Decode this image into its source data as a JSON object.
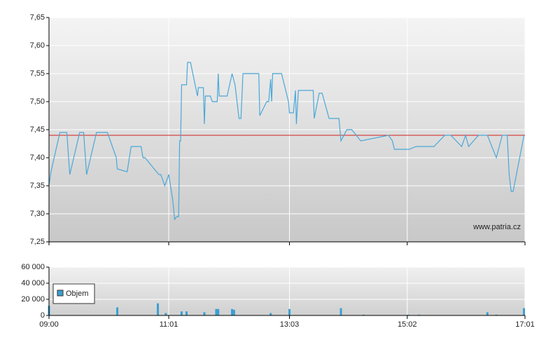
{
  "chart_data": {
    "type": "line",
    "watermark": "www.patria.cz",
    "xlim": [
      540,
      1021
    ],
    "xticks": [
      {
        "value": 540,
        "label": "09:00"
      },
      {
        "value": 661,
        "label": "11:01"
      },
      {
        "value": 783,
        "label": "13:03"
      },
      {
        "value": 902,
        "label": "15:02"
      },
      {
        "value": 1021,
        "label": "17:01"
      }
    ],
    "ylim": [
      7.25,
      7.65
    ],
    "yticks": [
      {
        "value": 7.25,
        "label": "7,25"
      },
      {
        "value": 7.3,
        "label": "7,30"
      },
      {
        "value": 7.35,
        "label": "7,35"
      },
      {
        "value": 7.4,
        "label": "7,40"
      },
      {
        "value": 7.45,
        "label": "7,45"
      },
      {
        "value": 7.5,
        "label": "7,50"
      },
      {
        "value": 7.55,
        "label": "7,55"
      },
      {
        "value": 7.6,
        "label": "7,60"
      },
      {
        "value": 7.65,
        "label": "7,65"
      }
    ],
    "y2lim": [
      0,
      60000
    ],
    "y2ticks": [
      0,
      {
        "value": 20000,
        "label": "20 000"
      },
      {
        "value": 40000,
        "label": "40 000"
      },
      {
        "value": 60000,
        "label": "60 000"
      }
    ],
    "reference_line": {
      "value": 7.44,
      "color": "#d42020"
    },
    "grid": true,
    "legend": "upper left",
    "series": [
      {
        "type": "line",
        "color": "#4aa8d8",
        "x": [
          540,
          542,
          551,
          558,
          561,
          571,
          575,
          578,
          588,
          599,
          608,
          609,
          619,
          623,
          633,
          635,
          637,
          651,
          653,
          657,
          661,
          665,
          667,
          669,
          671,
          672,
          673,
          674,
          679,
          680,
          683,
          690,
          691,
          696,
          697,
          698,
          703,
          705,
          710,
          711,
          712,
          720,
          725,
          728,
          732,
          734,
          736,
          752,
          753,
          760,
          762,
          764,
          765,
          766,
          775,
          782,
          783,
          787,
          789,
          790,
          792,
          807,
          808,
          813,
          816,
          823,
          833,
          835,
          841,
          846,
          855,
          883,
          887,
          889,
          904,
          911,
          929,
          940,
          946,
          957,
          961,
          964,
          974,
          983,
          992,
          998,
          1003,
          1005,
          1007,
          1009,
          1020
        ],
        "values": [
          7.35,
          7.375,
          7.445,
          7.445,
          7.37,
          7.445,
          7.445,
          7.37,
          7.445,
          7.445,
          7.4,
          7.38,
          7.375,
          7.42,
          7.42,
          7.4,
          7.4,
          7.37,
          7.37,
          7.35,
          7.37,
          7.325,
          7.29,
          7.295,
          7.295,
          7.43,
          7.43,
          7.53,
          7.53,
          7.57,
          7.57,
          7.51,
          7.525,
          7.525,
          7.46,
          7.51,
          7.51,
          7.5,
          7.5,
          7.55,
          7.51,
          7.51,
          7.55,
          7.53,
          7.47,
          7.47,
          7.55,
          7.55,
          7.475,
          7.5,
          7.5,
          7.54,
          7.5,
          7.55,
          7.55,
          7.5,
          7.48,
          7.48,
          7.52,
          7.46,
          7.52,
          7.52,
          7.47,
          7.515,
          7.515,
          7.47,
          7.47,
          7.43,
          7.45,
          7.45,
          7.43,
          7.44,
          7.43,
          7.415,
          7.415,
          7.42,
          7.42,
          7.44,
          7.44,
          7.42,
          7.44,
          7.42,
          7.44,
          7.44,
          7.4,
          7.44,
          7.44,
          7.37,
          7.34,
          7.34,
          7.44
        ]
      },
      {
        "type": "bar",
        "name": "Objem",
        "axis": "y2",
        "color": "#3b9fd0",
        "x": [
          540,
          609,
          650,
          658,
          674,
          679,
          697,
          709,
          711,
          725,
          727,
          764,
          783,
          835,
          858,
          903,
          914,
          983,
          992,
          1020
        ],
        "values": [
          12000,
          10000,
          15000,
          3000,
          5000,
          5000,
          4000,
          8000,
          8000,
          8000,
          7000,
          3000,
          8000,
          9000,
          1000,
          1000,
          1000,
          4000,
          1000,
          9000
        ]
      }
    ]
  }
}
